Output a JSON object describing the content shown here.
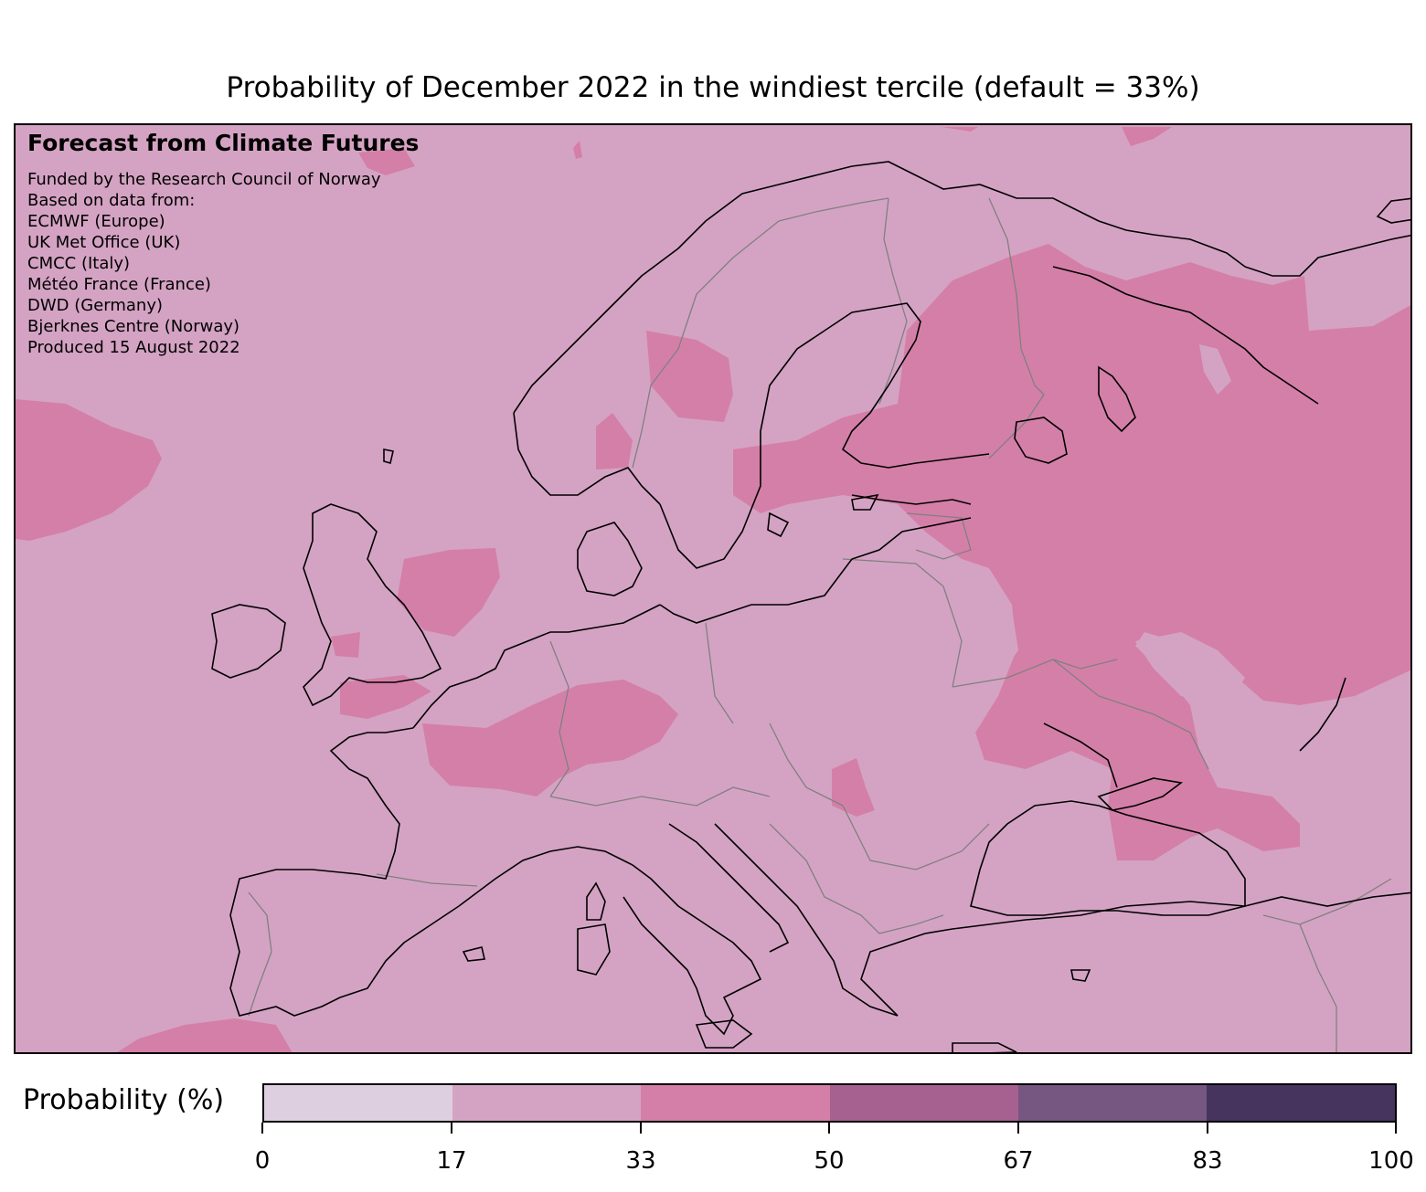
{
  "title": "Probability of December 2022 in the windiest tercile (default = 33%)",
  "info": {
    "heading": "Forecast from Climate Futures",
    "lines": [
      "Funded by the Research Council of Norway",
      "Based on data from:",
      "ECMWF (Europe)",
      "UK Met Office (UK)",
      "CMCC (Italy)",
      "Météo France (France)",
      "DWD (Germany)",
      "Bjerknes Centre (Norway)",
      "Produced 15 August 2022"
    ]
  },
  "map": {
    "region": "Europe",
    "background_class": "17-33%",
    "highlighted_class": "33-50%",
    "colors": {
      "ocean_land_fill": "#d4a3c3",
      "high_zone": "#d47fa8",
      "coastline": "#000000",
      "borders": "#808080"
    }
  },
  "colorbar": {
    "label": "Probability (%)",
    "ticks": [
      "0",
      "17",
      "33",
      "50",
      "67",
      "83",
      "100"
    ],
    "colors": [
      "#ddcfe0",
      "#d4a3c3",
      "#d47fa8",
      "#a76190",
      "#765782",
      "#47345e"
    ]
  }
}
